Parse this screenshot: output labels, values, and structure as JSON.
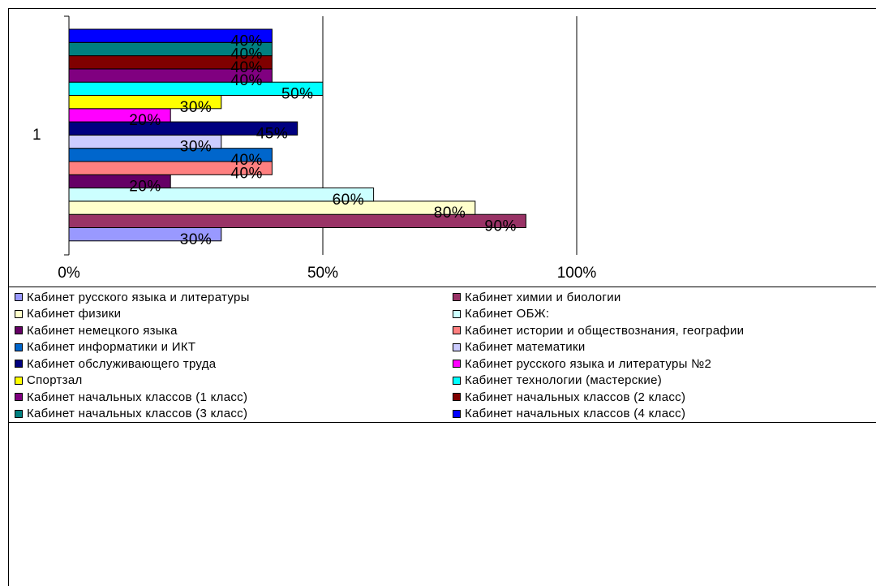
{
  "chart_data": {
    "type": "bar",
    "orientation": "horizontal",
    "category_label": "1",
    "xlim": [
      0,
      100
    ],
    "x_ticks": [
      "0%",
      "50%",
      "100%"
    ],
    "grid": "vertical",
    "legend_position": "bottom",
    "series": [
      {
        "name": "Кабинет русского языка и литературы",
        "value": 30,
        "label": "30%",
        "color": "#9999FF"
      },
      {
        "name": "Кабинет химии и биологии",
        "value": 90,
        "label": "90%",
        "color": "#993366"
      },
      {
        "name": "Кабинет физики",
        "value": 80,
        "label": "80%",
        "color": "#FFFFCC"
      },
      {
        "name": "Кабинет ОБЖ:",
        "value": 60,
        "label": "60%",
        "color": "#CCFFFF"
      },
      {
        "name": "Кабинет немецкого языка",
        "value": 20,
        "label": "20%",
        "color": "#660066"
      },
      {
        "name": "Кабинет истории и обществознания, географии",
        "value": 40,
        "label": "40%",
        "color": "#FF8080"
      },
      {
        "name": "Кабинет информатики и ИКТ",
        "value": 40,
        "label": "40%",
        "color": "#0066CC"
      },
      {
        "name": "Кабинет математики",
        "value": 30,
        "label": "30%",
        "color": "#CCCCFF"
      },
      {
        "name": "Кабинет обслуживающего труда",
        "value": 45,
        "label": "45%",
        "color": "#000080"
      },
      {
        "name": "Кабинет русского языка и литературы №2",
        "value": 20,
        "label": "20%",
        "color": "#FF00FF"
      },
      {
        "name": "Спортзал",
        "value": 30,
        "label": "30%",
        "color": "#FFFF00"
      },
      {
        "name": "Кабинет технологии (мастерские)",
        "value": 50,
        "label": "50%",
        "color": "#00FFFF"
      },
      {
        "name": "Кабинет начальных классов  (1 класс)",
        "value": 40,
        "label": "40%",
        "color": "#800080"
      },
      {
        "name": "Кабинет начальных классов  (2 класс)",
        "value": 40,
        "label": "40%",
        "color": "#800000"
      },
      {
        "name": "Кабинет начальных классов  (3 класс)",
        "value": 40,
        "label": "40%",
        "color": "#008080"
      },
      {
        "name": "Кабинет начальных классов  (4 класс)",
        "value": 40,
        "label": "40%",
        "color": "#0000FF"
      }
    ]
  }
}
